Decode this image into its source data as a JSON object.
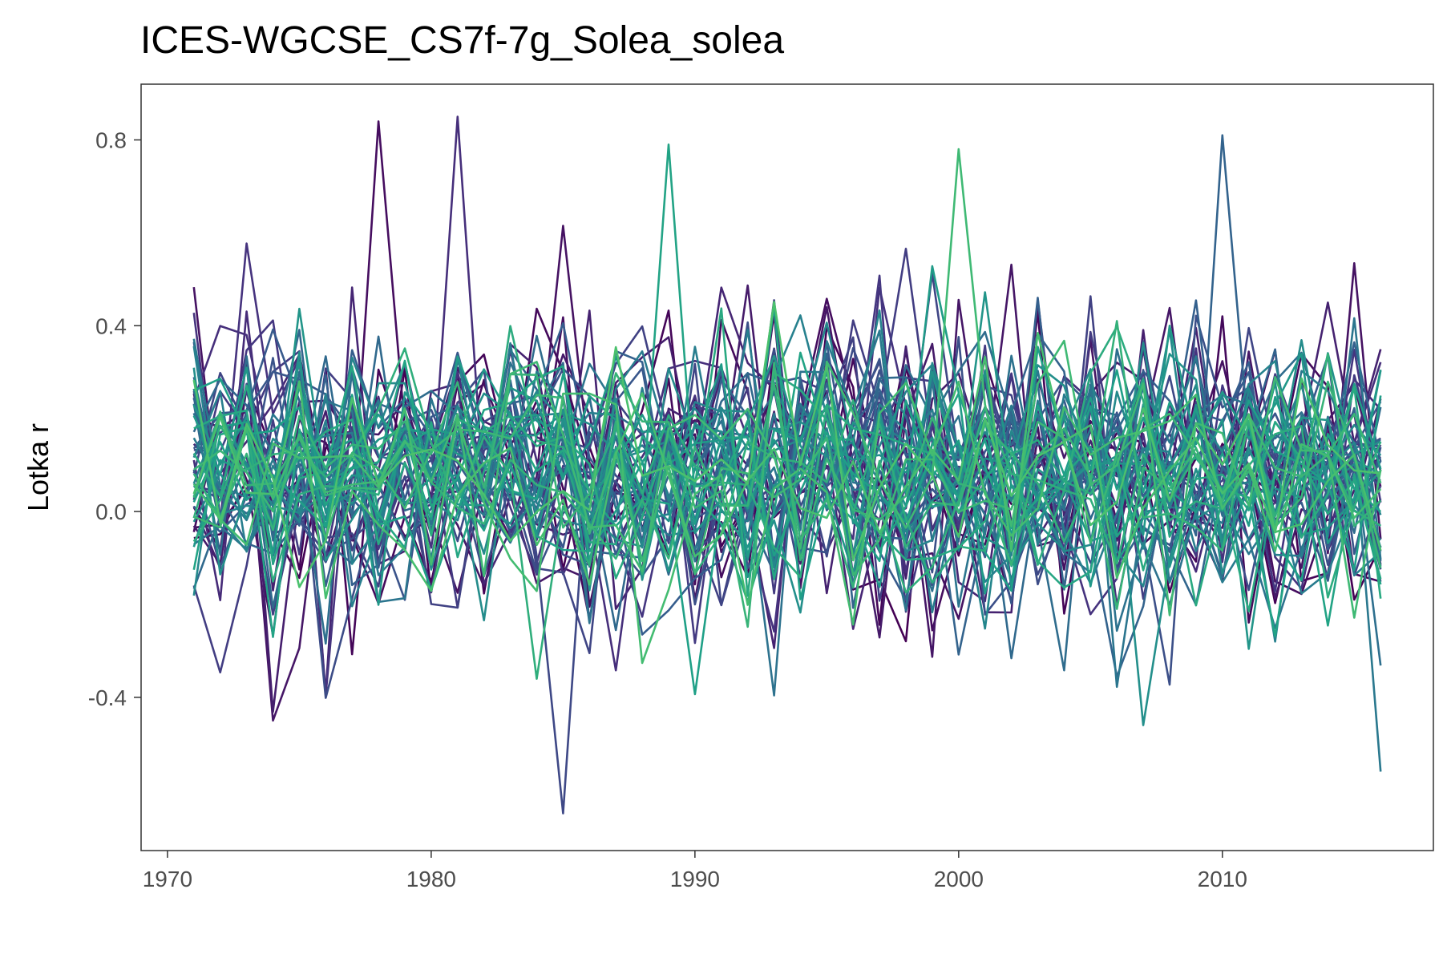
{
  "chart_data": {
    "type": "line",
    "title": "ICES-WGCSE_CS7f-7g_Solea_solea",
    "xlabel": "",
    "ylabel": "Lotka r",
    "xlim": [
      1969,
      2018
    ],
    "ylim": [
      -0.73,
      0.92
    ],
    "x_ticks": [
      1970,
      1980,
      1990,
      2000,
      2010
    ],
    "y_ticks": [
      0.8,
      0.4,
      0.0,
      -0.4
    ],
    "y_tick_labels": [
      "0.8",
      "0.4",
      "0.0",
      "-0.4"
    ],
    "grid": false,
    "legend": "none",
    "x_start": 1971,
    "x_end": 2016,
    "series_count": 60,
    "palette": [
      "#440154",
      "#46327e",
      "#365c8d",
      "#277f8e",
      "#1fa187",
      "#4ac16d"
    ],
    "series_summary": {
      "center": 0.08,
      "typical_range": [
        -0.25,
        0.45
      ],
      "extremes": [
        {
          "x": 1978,
          "y": 0.84
        },
        {
          "x": 1981,
          "y": 0.85
        },
        {
          "x": 1985,
          "y": -0.65
        },
        {
          "x": 2010,
          "y": 0.81
        },
        {
          "x": 2016,
          "y": -0.56
        },
        {
          "x": 2007,
          "y": -0.46
        },
        {
          "x": 1989,
          "y": 0.79
        },
        {
          "x": 2000,
          "y": 0.78
        }
      ]
    }
  }
}
